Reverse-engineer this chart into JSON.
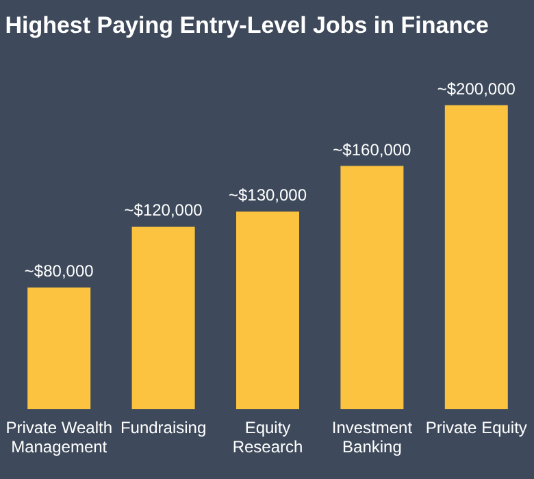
{
  "chart_data": {
    "type": "bar",
    "title": "Highest Paying Entry-Level Jobs in Finance",
    "categories": [
      "Private Wealth Management",
      "Fundraising",
      "Equity Research",
      "Investment Banking",
      "Private Equity"
    ],
    "values": [
      80000,
      120000,
      130000,
      160000,
      200000
    ],
    "value_labels": [
      "~$80,000",
      "~$120,000",
      "~$130,000",
      "~$160,000",
      "~$200,000"
    ],
    "color": "#fbc33f",
    "grid": false
  }
}
